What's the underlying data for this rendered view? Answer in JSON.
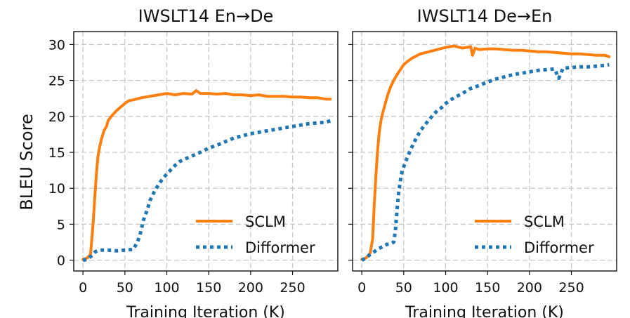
{
  "ylabel": "BLEU Score",
  "chart_data": [
    {
      "type": "line",
      "title": "IWSLT14 En→De",
      "xlabel": "Training Iteration (K)",
      "ylabel": "BLEU Score",
      "xlim": [
        -11,
        304
      ],
      "ylim": [
        -1.5,
        31.8
      ],
      "xticks": [
        0,
        50,
        100,
        150,
        200,
        250
      ],
      "yticks": [
        0,
        5,
        10,
        15,
        20,
        25,
        30
      ],
      "grid": true,
      "legend": "bottom-right",
      "series": [
        {
          "name": "SCLM",
          "style": "solid",
          "color": "#ff7f0e",
          "x": [
            0,
            5,
            9,
            12,
            14,
            16,
            18,
            20,
            22,
            25,
            28,
            30,
            33,
            36,
            40,
            45,
            50,
            55,
            60,
            70,
            80,
            90,
            100,
            110,
            120,
            130,
            135,
            140,
            150,
            160,
            170,
            180,
            190,
            200,
            210,
            220,
            230,
            240,
            250,
            260,
            270,
            280,
            290,
            295
          ],
          "y": [
            0.1,
            0.3,
            0.8,
            5.0,
            8.5,
            12.0,
            14.5,
            15.8,
            16.8,
            18.0,
            18.6,
            19.4,
            19.9,
            20.3,
            20.8,
            21.3,
            21.8,
            22.2,
            22.3,
            22.6,
            22.8,
            23.0,
            23.2,
            23.0,
            23.2,
            23.1,
            23.6,
            23.2,
            23.2,
            23.1,
            23.2,
            23.0,
            23.0,
            22.9,
            23.0,
            22.8,
            22.8,
            22.8,
            22.7,
            22.7,
            22.6,
            22.6,
            22.4,
            22.4
          ]
        },
        {
          "name": "Difformer",
          "style": "dotted",
          "color": "#1f77b4",
          "x": [
            0,
            5,
            10,
            15,
            20,
            30,
            40,
            50,
            60,
            65,
            68,
            70,
            72,
            75,
            78,
            80,
            85,
            90,
            95,
            100,
            105,
            110,
            115,
            120,
            130,
            140,
            150,
            160,
            170,
            180,
            190,
            200,
            210,
            220,
            230,
            240,
            250,
            260,
            270,
            280,
            290,
            295
          ],
          "y": [
            0.0,
            0.1,
            0.6,
            1.2,
            1.4,
            1.4,
            1.3,
            1.4,
            1.5,
            2.5,
            3.5,
            4.5,
            5.5,
            6.5,
            7.5,
            8.3,
            9.5,
            10.5,
            11.3,
            12.0,
            12.6,
            13.2,
            13.7,
            14.0,
            14.5,
            15.0,
            15.6,
            16.0,
            16.5,
            17.0,
            17.3,
            17.6,
            17.8,
            18.0,
            18.2,
            18.4,
            18.6,
            18.8,
            19.0,
            19.1,
            19.2,
            19.4
          ]
        }
      ]
    },
    {
      "type": "line",
      "title": "IWSLT14 De→En",
      "xlabel": "Training Iteration (K)",
      "ylabel": "",
      "xlim": [
        -11,
        304
      ],
      "ylim": [
        -1.5,
        31.8
      ],
      "xticks": [
        0,
        50,
        100,
        150,
        200,
        250
      ],
      "yticks": [
        0,
        5,
        10,
        15,
        20,
        25,
        30
      ],
      "grid": true,
      "legend": "bottom-right",
      "series": [
        {
          "name": "SCLM",
          "style": "solid",
          "color": "#ff7f0e",
          "x": [
            0,
            5,
            10,
            13,
            15,
            17,
            19,
            21,
            23,
            25,
            28,
            31,
            34,
            38,
            42,
            46,
            50,
            55,
            60,
            70,
            80,
            90,
            100,
            110,
            120,
            130,
            132,
            135,
            140,
            150,
            160,
            170,
            180,
            190,
            200,
            210,
            220,
            230,
            240,
            250,
            260,
            270,
            280,
            290,
            295
          ],
          "y": [
            0.1,
            0.3,
            1.0,
            3.0,
            8.0,
            12.0,
            15.5,
            18.0,
            19.5,
            20.5,
            21.8,
            23.0,
            24.0,
            25.0,
            25.8,
            26.5,
            27.2,
            27.7,
            28.1,
            28.7,
            29.0,
            29.3,
            29.6,
            29.8,
            29.5,
            29.7,
            28.5,
            29.5,
            29.3,
            29.4,
            29.4,
            29.3,
            29.2,
            29.2,
            29.1,
            29.0,
            29.0,
            28.9,
            28.8,
            28.7,
            28.7,
            28.6,
            28.5,
            28.5,
            28.3
          ]
        },
        {
          "name": "Difformer",
          "style": "dotted",
          "color": "#1f77b4",
          "x": [
            0,
            5,
            10,
            15,
            20,
            25,
            30,
            35,
            38,
            40,
            42,
            44,
            46,
            48,
            50,
            55,
            60,
            65,
            70,
            75,
            80,
            85,
            90,
            95,
            100,
            110,
            120,
            130,
            140,
            150,
            160,
            170,
            180,
            190,
            200,
            210,
            220,
            230,
            235,
            240,
            250,
            260,
            270,
            280,
            290,
            295
          ],
          "y": [
            0.0,
            0.3,
            0.8,
            1.2,
            1.6,
            1.9,
            2.2,
            2.3,
            2.5,
            4.0,
            7.0,
            9.5,
            11.0,
            12.3,
            13.0,
            14.5,
            15.8,
            17.0,
            18.0,
            18.8,
            19.5,
            20.2,
            20.8,
            21.2,
            21.8,
            22.6,
            23.2,
            23.9,
            24.3,
            24.8,
            25.2,
            25.5,
            25.8,
            26.0,
            26.2,
            26.4,
            26.5,
            26.6,
            25.3,
            26.7,
            26.8,
            26.9,
            26.9,
            27.0,
            27.1,
            27.2
          ]
        }
      ]
    }
  ]
}
